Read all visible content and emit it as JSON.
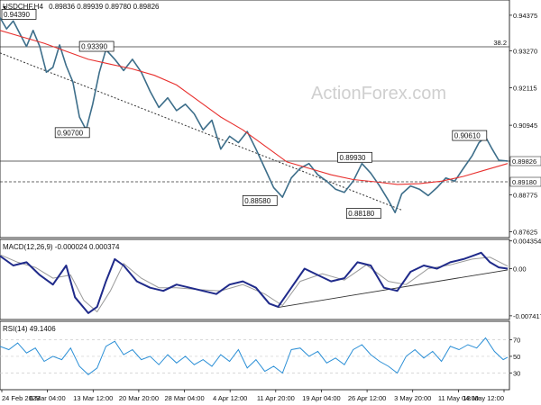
{
  "chart_data": {
    "type": "line",
    "symbol_label": "USDCHF,H4",
    "ohlc": "0.89836 0.89939 0.89780 0.89826",
    "watermark": "ActionForex.com",
    "x_labels": [
      "24 Feb 2023",
      "6 Mar 04:00",
      "13 Mar 12:00",
      "20 Mar 20:00",
      "28 Mar 04:00",
      "4 Apr 12:00",
      "11 Apr 20:00",
      "19 Apr 04:00",
      "26 Apr 12:00",
      "3 May 20:00",
      "11 May 04:00",
      "18 May 12:00"
    ],
    "price_panel": {
      "ylim": [
        0.8744,
        0.9485
      ],
      "y_ticks": [
        "0.94375",
        "0.93270",
        "0.92115",
        "0.90945",
        "0.89826",
        "0.88775",
        "0.87625"
      ],
      "y_tick_values": [
        0.94375,
        0.9327,
        0.92115,
        0.90945,
        0.89826,
        0.88775,
        0.87625
      ],
      "price_series": [
        {
          "t": 0,
          "v": 0.943
        },
        {
          "t": 3,
          "v": 0.9395
        },
        {
          "t": 6,
          "v": 0.942
        },
        {
          "t": 9,
          "v": 0.938
        },
        {
          "t": 12,
          "v": 0.934
        },
        {
          "t": 15,
          "v": 0.939
        },
        {
          "t": 18,
          "v": 0.934
        },
        {
          "t": 21,
          "v": 0.926
        },
        {
          "t": 24,
          "v": 0.9275
        },
        {
          "t": 27,
          "v": 0.9345
        },
        {
          "t": 30,
          "v": 0.928
        },
        {
          "t": 33,
          "v": 0.923
        },
        {
          "t": 36,
          "v": 0.912
        },
        {
          "t": 39,
          "v": 0.908
        },
        {
          "t": 42,
          "v": 0.916
        },
        {
          "t": 45,
          "v": 0.926
        },
        {
          "t": 48,
          "v": 0.933
        },
        {
          "t": 52,
          "v": 0.93
        },
        {
          "t": 56,
          "v": 0.9265
        },
        {
          "t": 60,
          "v": 0.93
        },
        {
          "t": 64,
          "v": 0.926
        },
        {
          "t": 68,
          "v": 0.92
        },
        {
          "t": 72,
          "v": 0.915
        },
        {
          "t": 76,
          "v": 0.918
        },
        {
          "t": 80,
          "v": 0.914
        },
        {
          "t": 84,
          "v": 0.916
        },
        {
          "t": 88,
          "v": 0.913
        },
        {
          "t": 92,
          "v": 0.908
        },
        {
          "t": 96,
          "v": 0.911
        },
        {
          "t": 100,
          "v": 0.902
        },
        {
          "t": 104,
          "v": 0.906
        },
        {
          "t": 108,
          "v": 0.904
        },
        {
          "t": 112,
          "v": 0.9075
        },
        {
          "t": 116,
          "v": 0.902
        },
        {
          "t": 120,
          "v": 0.896
        },
        {
          "t": 124,
          "v": 0.89
        },
        {
          "t": 128,
          "v": 0.887
        },
        {
          "t": 132,
          "v": 0.893
        },
        {
          "t": 136,
          "v": 0.896
        },
        {
          "t": 140,
          "v": 0.8975
        },
        {
          "t": 144,
          "v": 0.894
        },
        {
          "t": 148,
          "v": 0.892
        },
        {
          "t": 152,
          "v": 0.8895
        },
        {
          "t": 156,
          "v": 0.8885
        },
        {
          "t": 160,
          "v": 0.892
        },
        {
          "t": 164,
          "v": 0.8975
        },
        {
          "t": 168,
          "v": 0.8945
        },
        {
          "t": 172,
          "v": 0.8905
        },
        {
          "t": 176,
          "v": 0.886
        },
        {
          "t": 179,
          "v": 0.8822
        },
        {
          "t": 182,
          "v": 0.888
        },
        {
          "t": 186,
          "v": 0.8905
        },
        {
          "t": 190,
          "v": 0.8895
        },
        {
          "t": 194,
          "v": 0.8875
        },
        {
          "t": 198,
          "v": 0.89
        },
        {
          "t": 202,
          "v": 0.893
        },
        {
          "t": 206,
          "v": 0.892
        },
        {
          "t": 210,
          "v": 0.896
        },
        {
          "t": 214,
          "v": 0.9
        },
        {
          "t": 217,
          "v": 0.904
        },
        {
          "t": 220,
          "v": 0.9058
        },
        {
          "t": 223,
          "v": 0.902
        },
        {
          "t": 226,
          "v": 0.8985
        },
        {
          "t": 230,
          "v": 0.8983
        }
      ],
      "ma_series": [
        {
          "t": 0,
          "v": 0.939
        },
        {
          "t": 10,
          "v": 0.937
        },
        {
          "t": 20,
          "v": 0.935
        },
        {
          "t": 30,
          "v": 0.9325
        },
        {
          "t": 40,
          "v": 0.93
        },
        {
          "t": 50,
          "v": 0.9285
        },
        {
          "t": 60,
          "v": 0.927
        },
        {
          "t": 70,
          "v": 0.925
        },
        {
          "t": 80,
          "v": 0.922
        },
        {
          "t": 90,
          "v": 0.917
        },
        {
          "t": 100,
          "v": 0.912
        },
        {
          "t": 110,
          "v": 0.908
        },
        {
          "t": 120,
          "v": 0.903
        },
        {
          "t": 130,
          "v": 0.898
        },
        {
          "t": 140,
          "v": 0.896
        },
        {
          "t": 150,
          "v": 0.894
        },
        {
          "t": 160,
          "v": 0.8925
        },
        {
          "t": 170,
          "v": 0.8918
        },
        {
          "t": 180,
          "v": 0.891
        },
        {
          "t": 190,
          "v": 0.8912
        },
        {
          "t": 200,
          "v": 0.892
        },
        {
          "t": 210,
          "v": 0.8935
        },
        {
          "t": 220,
          "v": 0.8955
        },
        {
          "t": 230,
          "v": 0.8975
        }
      ],
      "trendline": {
        "t1": 0,
        "v1": 0.932,
        "t2": 182,
        "v2": 0.883
      },
      "levels": [
        {
          "value": 0.9339,
          "style": "solid",
          "label": "38.2"
        },
        {
          "value": 0.89826,
          "style": "solid",
          "label": ""
        },
        {
          "value": 0.8918,
          "style": "dashed",
          "label": ""
        }
      ],
      "annotations": [
        {
          "label": "0.94390",
          "t": 0,
          "v": 0.9439
        },
        {
          "label": "0.93390",
          "t": 36,
          "v": 0.9339
        },
        {
          "label": "0.90700",
          "t": 25,
          "v": 0.907
        },
        {
          "label": "0.88580",
          "t": 110,
          "v": 0.8858
        },
        {
          "label": "0.89930",
          "t": 153,
          "v": 0.8993
        },
        {
          "label": "0.88180",
          "t": 157,
          "v": 0.8818
        },
        {
          "label": "0.90610",
          "t": 205,
          "v": 0.9061
        }
      ],
      "tag_labels": [
        "0.89826",
        "0.89180"
      ],
      "tag_values": [
        0.89826,
        0.8918
      ]
    },
    "macd_panel": {
      "title": "MACD(12,26,9) -0.000024 0.000374",
      "ylim": [
        -0.008,
        0.0046
      ],
      "y_ticks": [
        "0.004354",
        "0.00",
        "-0.007417"
      ],
      "y_tick_values": [
        0.004354,
        0.0,
        -0.007417
      ],
      "macd_series": [
        {
          "t": 0,
          "v": 0.002
        },
        {
          "t": 6,
          "v": 0.0005
        },
        {
          "t": 12,
          "v": 0.001
        },
        {
          "t": 18,
          "v": -0.001
        },
        {
          "t": 24,
          "v": -0.0025
        },
        {
          "t": 30,
          "v": 0.0005
        },
        {
          "t": 34,
          "v": -0.0045
        },
        {
          "t": 40,
          "v": -0.007
        },
        {
          "t": 44,
          "v": -0.006
        },
        {
          "t": 48,
          "v": -0.002
        },
        {
          "t": 52,
          "v": 0.0015
        },
        {
          "t": 56,
          "v": 0.0005
        },
        {
          "t": 62,
          "v": -0.002
        },
        {
          "t": 68,
          "v": -0.003
        },
        {
          "t": 74,
          "v": -0.0035
        },
        {
          "t": 80,
          "v": -0.0025
        },
        {
          "t": 86,
          "v": -0.003
        },
        {
          "t": 92,
          "v": -0.0035
        },
        {
          "t": 98,
          "v": -0.004
        },
        {
          "t": 104,
          "v": -0.0025
        },
        {
          "t": 110,
          "v": -0.002
        },
        {
          "t": 116,
          "v": -0.003
        },
        {
          "t": 122,
          "v": -0.0055
        },
        {
          "t": 126,
          "v": -0.006
        },
        {
          "t": 132,
          "v": -0.003
        },
        {
          "t": 138,
          "v": 0.0
        },
        {
          "t": 144,
          "v": -0.001
        },
        {
          "t": 150,
          "v": -0.002
        },
        {
          "t": 156,
          "v": -0.0015
        },
        {
          "t": 162,
          "v": 0.001
        },
        {
          "t": 168,
          "v": 0.0005
        },
        {
          "t": 174,
          "v": -0.003
        },
        {
          "t": 180,
          "v": -0.0035
        },
        {
          "t": 186,
          "v": -0.0005
        },
        {
          "t": 192,
          "v": 0.0005
        },
        {
          "t": 198,
          "v": 0.0
        },
        {
          "t": 204,
          "v": 0.001
        },
        {
          "t": 210,
          "v": 0.0015
        },
        {
          "t": 214,
          "v": 0.002
        },
        {
          "t": 218,
          "v": 0.0025
        },
        {
          "t": 222,
          "v": 0.001
        },
        {
          "t": 226,
          "v": 0.0002
        },
        {
          "t": 230,
          "v": 0.0
        }
      ],
      "signal_series": [
        {
          "t": 0,
          "v": 0.0022
        },
        {
          "t": 8,
          "v": 0.001
        },
        {
          "t": 16,
          "v": 0.0002
        },
        {
          "t": 24,
          "v": -0.0015
        },
        {
          "t": 32,
          "v": -0.001
        },
        {
          "t": 38,
          "v": -0.005
        },
        {
          "t": 44,
          "v": -0.0068
        },
        {
          "t": 50,
          "v": -0.0035
        },
        {
          "t": 56,
          "v": 0.0008
        },
        {
          "t": 64,
          "v": -0.0015
        },
        {
          "t": 72,
          "v": -0.003
        },
        {
          "t": 80,
          "v": -0.003
        },
        {
          "t": 90,
          "v": -0.0033
        },
        {
          "t": 100,
          "v": -0.0035
        },
        {
          "t": 110,
          "v": -0.0025
        },
        {
          "t": 120,
          "v": -0.004
        },
        {
          "t": 128,
          "v": -0.0058
        },
        {
          "t": 136,
          "v": -0.002
        },
        {
          "t": 146,
          "v": -0.0008
        },
        {
          "t": 156,
          "v": -0.0018
        },
        {
          "t": 166,
          "v": 0.0006
        },
        {
          "t": 176,
          "v": -0.002
        },
        {
          "t": 184,
          "v": -0.0025
        },
        {
          "t": 194,
          "v": 0.0
        },
        {
          "t": 204,
          "v": 0.0006
        },
        {
          "t": 214,
          "v": 0.0015
        },
        {
          "t": 222,
          "v": 0.0018
        },
        {
          "t": 230,
          "v": 0.0004
        }
      ],
      "trendline": {
        "t1": 126,
        "v1": -0.0061,
        "t2": 230,
        "v2": -0.0002
      }
    },
    "rsi_panel": {
      "title": "RSI(14) 49.1406",
      "ylim": [
        10,
        92
      ],
      "y_ticks": [
        "70",
        "50",
        "30"
      ],
      "y_tick_values": [
        70,
        50,
        30
      ],
      "rsi_series": [
        {
          "t": 0,
          "v": 62
        },
        {
          "t": 4,
          "v": 58
        },
        {
          "t": 8,
          "v": 66
        },
        {
          "t": 12,
          "v": 54
        },
        {
          "t": 16,
          "v": 60
        },
        {
          "t": 20,
          "v": 44
        },
        {
          "t": 24,
          "v": 50
        },
        {
          "t": 28,
          "v": 46
        },
        {
          "t": 32,
          "v": 60
        },
        {
          "t": 36,
          "v": 38
        },
        {
          "t": 40,
          "v": 28
        },
        {
          "t": 44,
          "v": 36
        },
        {
          "t": 48,
          "v": 62
        },
        {
          "t": 52,
          "v": 68
        },
        {
          "t": 56,
          "v": 52
        },
        {
          "t": 60,
          "v": 58
        },
        {
          "t": 64,
          "v": 46
        },
        {
          "t": 68,
          "v": 50
        },
        {
          "t": 72,
          "v": 40
        },
        {
          "t": 76,
          "v": 52
        },
        {
          "t": 80,
          "v": 42
        },
        {
          "t": 84,
          "v": 50
        },
        {
          "t": 88,
          "v": 40
        },
        {
          "t": 92,
          "v": 46
        },
        {
          "t": 96,
          "v": 38
        },
        {
          "t": 100,
          "v": 52
        },
        {
          "t": 104,
          "v": 44
        },
        {
          "t": 108,
          "v": 58
        },
        {
          "t": 112,
          "v": 36
        },
        {
          "t": 116,
          "v": 46
        },
        {
          "t": 120,
          "v": 32
        },
        {
          "t": 124,
          "v": 38
        },
        {
          "t": 128,
          "v": 30
        },
        {
          "t": 132,
          "v": 58
        },
        {
          "t": 136,
          "v": 60
        },
        {
          "t": 140,
          "v": 50
        },
        {
          "t": 144,
          "v": 56
        },
        {
          "t": 148,
          "v": 42
        },
        {
          "t": 152,
          "v": 48
        },
        {
          "t": 156,
          "v": 40
        },
        {
          "t": 160,
          "v": 58
        },
        {
          "t": 164,
          "v": 64
        },
        {
          "t": 168,
          "v": 52
        },
        {
          "t": 172,
          "v": 44
        },
        {
          "t": 176,
          "v": 38
        },
        {
          "t": 180,
          "v": 30
        },
        {
          "t": 184,
          "v": 50
        },
        {
          "t": 188,
          "v": 58
        },
        {
          "t": 192,
          "v": 48
        },
        {
          "t": 196,
          "v": 56
        },
        {
          "t": 200,
          "v": 44
        },
        {
          "t": 204,
          "v": 62
        },
        {
          "t": 208,
          "v": 58
        },
        {
          "t": 212,
          "v": 64
        },
        {
          "t": 216,
          "v": 60
        },
        {
          "t": 220,
          "v": 72
        },
        {
          "t": 224,
          "v": 56
        },
        {
          "t": 228,
          "v": 46
        },
        {
          "t": 230,
          "v": 49
        }
      ]
    },
    "t_max": 230,
    "colors": {
      "price": "#3d6e8a",
      "ma": "#e8302e",
      "trendline": "#333333",
      "macd": "#1f2a8a",
      "signal": "#9a9a9a",
      "rsi": "#2b8fd6",
      "grid": "#cccccc"
    }
  }
}
